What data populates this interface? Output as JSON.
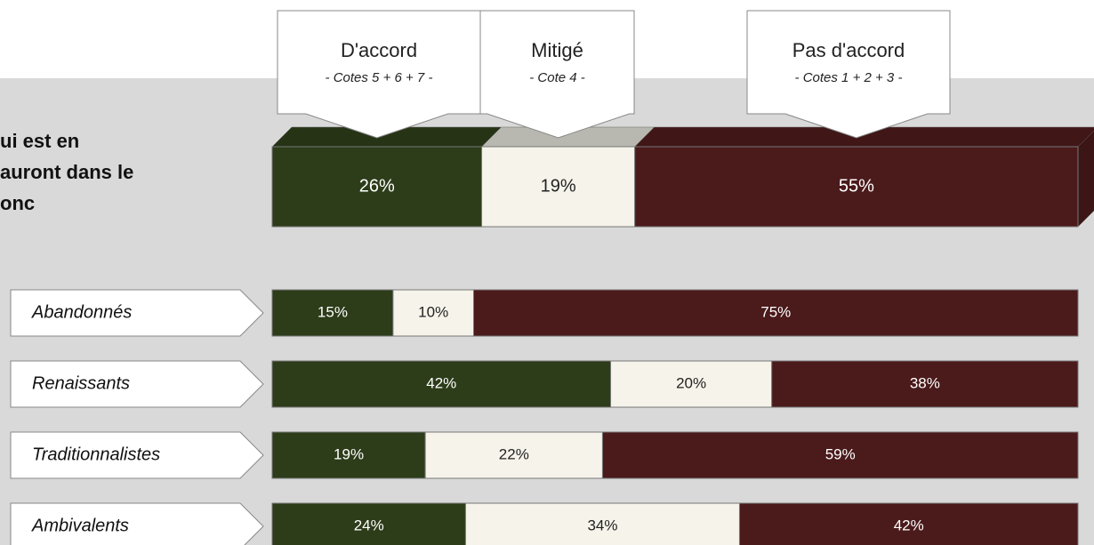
{
  "chart_data": {
    "type": "stacked_bar",
    "orientation": "horizontal",
    "question_lines": [
      "ui est en",
      "auront dans le",
      "onc"
    ],
    "categories": [
      null,
      "Abandonnés",
      "Renaissants",
      "Traditionnalistes",
      "Ambivalents"
    ],
    "series": [
      {
        "name": "D'accord",
        "subtitle": "- Cotes 5 + 6 + 7 -",
        "color": "#2d3c19",
        "values": [
          26,
          15,
          42,
          19,
          24
        ],
        "value_labels": [
          "26%",
          "15%",
          "42%",
          "19%",
          "24%"
        ]
      },
      {
        "name": "Mitigé",
        "subtitle": "- Cote 4 -",
        "color": "#f6f3ea",
        "values": [
          19,
          10,
          20,
          22,
          34
        ],
        "value_labels": [
          "19%",
          "10%",
          "20%",
          "22%",
          "34%"
        ]
      },
      {
        "name": "Pas d'accord",
        "subtitle": "- Cotes 1 + 2 + 3 -",
        "color": "#4b1a1b",
        "values": [
          55,
          75,
          38,
          59,
          42
        ],
        "value_labels": [
          "55%",
          "75%",
          "38%",
          "59%",
          "42%"
        ]
      }
    ]
  }
}
